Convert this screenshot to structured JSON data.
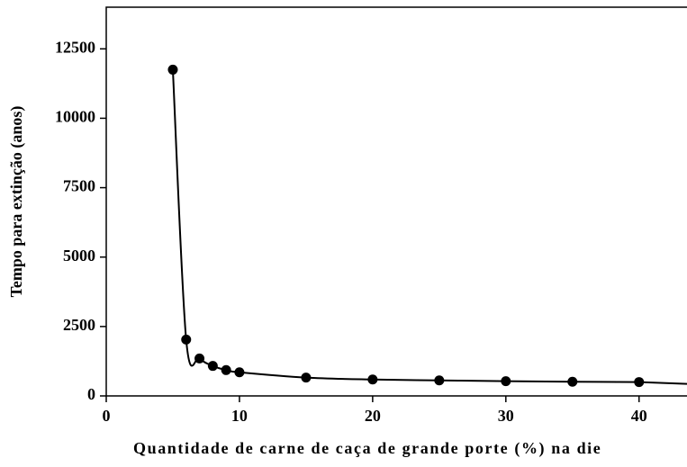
{
  "chart_data": {
    "type": "line",
    "x_label": "Quantidade de carne de caça de grande porte (%) na die",
    "y_label": "Tempo para extinção (anos)",
    "series": [
      {
        "color": "#000000",
        "x": [
          5,
          6,
          7,
          8,
          9,
          10,
          15,
          20,
          25,
          30,
          35,
          40
        ],
        "values": [
          11750,
          2030,
          1350,
          1080,
          930,
          850,
          660,
          590,
          560,
          530,
          510,
          500
        ]
      }
    ],
    "xlim": [
      0,
      43.6
    ],
    "xticks": [
      0,
      10,
      20,
      30,
      40
    ],
    "ylim": [
      0,
      14000
    ],
    "yticks": [
      0,
      2500,
      5000,
      7500,
      10000,
      12500
    ]
  }
}
